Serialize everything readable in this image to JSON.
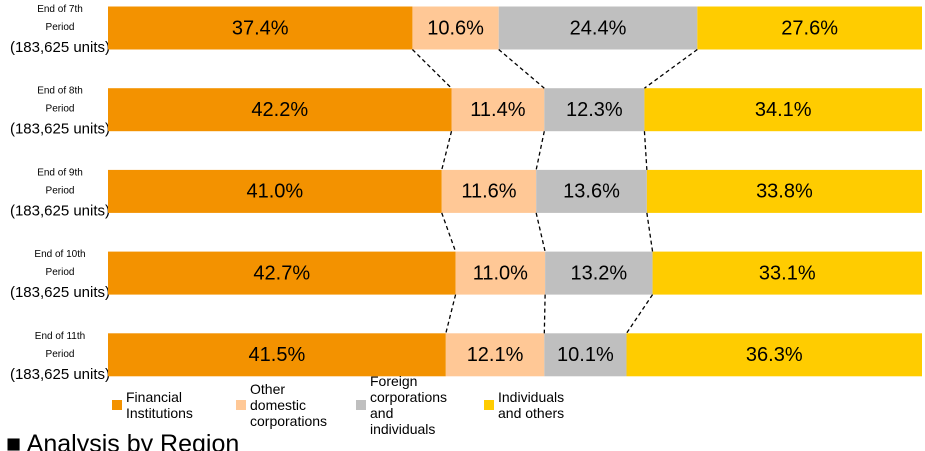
{
  "chart_data": {
    "type": "stacked_bar_horizontal",
    "categories": [
      "End of 7th\nPeriod\n(183,625 units)",
      "End of 8th\nPeriod\n(183,625 units)",
      "End of 9th\nPeriod\n(183,625 units)",
      "End of 10th\nPeriod\n(183,625 units)",
      "End of 11th\nPeriod\n(183,625 units)"
    ],
    "series": [
      {
        "name": "Financial Institutions",
        "color": "#f39200",
        "values": [
          37.4,
          42.2,
          41.0,
          42.7,
          41.5
        ],
        "value_labels": [
          "37.4%",
          "42.2%",
          "41.0%",
          "42.7%",
          "41.5%"
        ]
      },
      {
        "name": "Other domestic corporations",
        "color": "#ffc896",
        "values": [
          10.6,
          11.4,
          11.6,
          11.0,
          12.1
        ],
        "value_labels": [
          "10.6%",
          "11.4%",
          "11.6%",
          "11.0%",
          "12.1%"
        ]
      },
      {
        "name": "Foreign corporations and individuals",
        "color": "#bfbfbf",
        "values": [
          24.4,
          12.3,
          13.6,
          13.2,
          10.1
        ],
        "value_labels": [
          "24.4%",
          "12.3%",
          "13.6%",
          "13.2%",
          "10.1%"
        ]
      },
      {
        "name": "Individuals and others",
        "color": "#ffcc00",
        "values": [
          27.6,
          34.1,
          33.8,
          33.1,
          36.3
        ],
        "value_labels": [
          "27.6%",
          "34.1%",
          "33.8%",
          "33.1%",
          "36.3%"
        ]
      }
    ],
    "xlim": [
      0,
      100
    ],
    "legend": "bottom",
    "connectors": true
  },
  "heading": "■ Analysis by Region"
}
